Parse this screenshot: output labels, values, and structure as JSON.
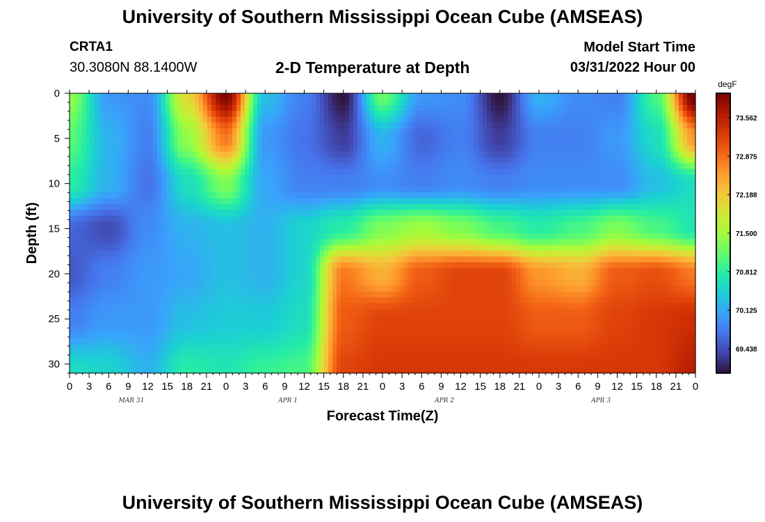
{
  "header": {
    "title": "University of Southern Mississippi Ocean Cube (AMSEAS)",
    "station": "CRTA1",
    "coords": "30.3080N  88.1400W",
    "chart_title": "2-D Temperature at Depth",
    "start_label": "Model Start Time",
    "start_value": "03/31/2022 Hour 00"
  },
  "footer": {
    "title": "University of Southern Mississippi Ocean Cube (AMSEAS)"
  },
  "colors": {
    "palette": [
      "#30123b",
      "#4145ab",
      "#4675ed",
      "#39a2fc",
      "#1bcfd4",
      "#24eca6",
      "#61fc6c",
      "#a4fc3b",
      "#d1e834",
      "#f3c63a",
      "#fe9b2d",
      "#f36315",
      "#d93806",
      "#b11901",
      "#7a0402"
    ]
  },
  "chart_data": {
    "type": "heatmap",
    "title": "2-D Temperature at Depth",
    "xlabel": "Forecast Time(Z)",
    "ylabel": "Depth (ft)",
    "x_range_hours": [
      0,
      96
    ],
    "ylim": [
      0,
      31
    ],
    "y_ticks": [
      "0",
      "5",
      "10",
      "15",
      "20",
      "25",
      "30"
    ],
    "x_ticks": [
      "0",
      "3",
      "6",
      "9",
      "12",
      "15",
      "18",
      "21",
      "0",
      "3",
      "6",
      "9",
      "12",
      "15",
      "18",
      "21",
      "0",
      "3",
      "6",
      "9",
      "12",
      "15",
      "18",
      "21",
      "0",
      "3",
      "6",
      "9",
      "12",
      "15",
      "18",
      "21",
      "0"
    ],
    "day_labels": [
      "MAR 31",
      "APR 1",
      "APR 2",
      "APR 3"
    ],
    "colorbar": {
      "unit": "degF",
      "min": 69.0,
      "max": 74.0,
      "labels": [
        "73.562",
        "72.875",
        "72.188",
        "71.500",
        "70.812",
        "70.125",
        "69.438"
      ]
    },
    "depths_ft": [
      0,
      5,
      10,
      15,
      20,
      25,
      31
    ],
    "times_h": [
      0,
      6,
      12,
      18,
      24,
      30,
      36,
      42,
      48,
      54,
      60,
      66,
      72,
      78,
      84,
      90,
      96
    ],
    "temperature_degF": [
      [
        71.4,
        70.0,
        69.9,
        72.0,
        74.0,
        70.3,
        69.8,
        69.0,
        71.2,
        70.0,
        69.9,
        69.0,
        70.2,
        69.9,
        69.8,
        71.0,
        74.2
      ],
      [
        71.1,
        70.2,
        69.8,
        71.4,
        72.8,
        70.0,
        69.7,
        69.3,
        70.2,
        69.6,
        69.8,
        69.3,
        69.8,
        69.8,
        70.0,
        70.6,
        72.6
      ],
      [
        70.8,
        70.2,
        69.7,
        70.6,
        71.3,
        70.1,
        69.8,
        69.8,
        69.9,
        69.8,
        69.9,
        69.8,
        69.9,
        69.9,
        69.9,
        70.3,
        70.6
      ],
      [
        69.6,
        69.4,
        69.9,
        70.2,
        70.3,
        70.2,
        70.5,
        70.8,
        71.3,
        71.5,
        71.3,
        71.0,
        70.8,
        71.0,
        71.3,
        71.0,
        70.7
      ],
      [
        69.5,
        69.8,
        70.0,
        70.1,
        70.3,
        70.2,
        70.5,
        72.8,
        72.4,
        73.0,
        73.2,
        73.2,
        72.6,
        72.4,
        73.0,
        73.1,
        72.8
      ],
      [
        69.8,
        70.0,
        70.0,
        70.3,
        70.4,
        70.4,
        70.6,
        73.0,
        73.2,
        73.2,
        73.2,
        73.2,
        73.0,
        73.0,
        73.2,
        73.3,
        73.4
      ],
      [
        70.6,
        70.5,
        70.2,
        70.8,
        70.7,
        70.9,
        71.0,
        73.2,
        73.3,
        73.3,
        73.3,
        73.3,
        73.3,
        73.3,
        73.3,
        73.3,
        73.6
      ]
    ]
  }
}
